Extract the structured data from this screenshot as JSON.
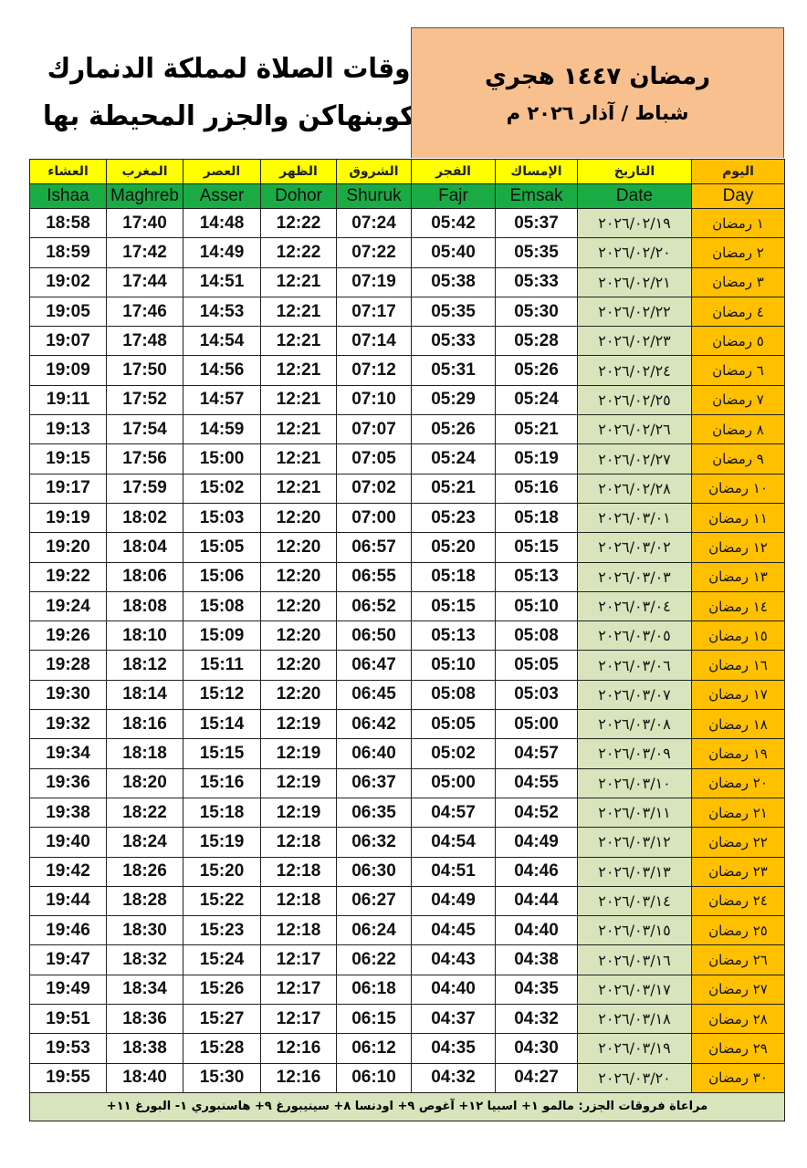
{
  "title": {
    "line1": "أوقات الصلاة لمملكة الدنمارك",
    "line2": "كوبنهاكن والجزر المحيطة بها"
  },
  "hijri": {
    "line1": "رمضان ١٤٤٧ هجري",
    "line2": "شباط / آذار ٢٠٢٦ م"
  },
  "colors": {
    "header_yellow": "#ffff00",
    "header_green": "#1aab45",
    "day_orange": "#ffc000",
    "date_green": "#d8e4bc",
    "hijri_box": "#f8c08e"
  },
  "columns": [
    {
      "key": "ishaa",
      "ar": "العشاء",
      "en": "Ishaa"
    },
    {
      "key": "maghreb",
      "ar": "المغرب",
      "en": "Maghreb"
    },
    {
      "key": "asser",
      "ar": "العصر",
      "en": "Asser"
    },
    {
      "key": "dohor",
      "ar": "الظهر",
      "en": "Dohor"
    },
    {
      "key": "shuruk",
      "ar": "الشروق",
      "en": "Shuruk"
    },
    {
      "key": "fajr",
      "ar": "الفجر",
      "en": "Fajr"
    },
    {
      "key": "emsak",
      "ar": "الإمساك",
      "en": "Emsak"
    },
    {
      "key": "date",
      "ar": "التاريخ",
      "en": "Date"
    },
    {
      "key": "day",
      "ar": "اليوم",
      "en": "Day"
    }
  ],
  "rows": [
    {
      "ishaa": "18:58",
      "maghreb": "17:40",
      "asser": "14:48",
      "dohor": "12:22",
      "shuruk": "07:24",
      "fajr": "05:42",
      "emsak": "05:37",
      "date": "٢٠٢٦/٠٢/١٩",
      "day": "١ رمضان"
    },
    {
      "ishaa": "18:59",
      "maghreb": "17:42",
      "asser": "14:49",
      "dohor": "12:22",
      "shuruk": "07:22",
      "fajr": "05:40",
      "emsak": "05:35",
      "date": "٢٠٢٦/٠٢/٢٠",
      "day": "٢ رمضان"
    },
    {
      "ishaa": "19:02",
      "maghreb": "17:44",
      "asser": "14:51",
      "dohor": "12:21",
      "shuruk": "07:19",
      "fajr": "05:38",
      "emsak": "05:33",
      "date": "٢٠٢٦/٠٢/٢١",
      "day": "٣ رمضان"
    },
    {
      "ishaa": "19:05",
      "maghreb": "17:46",
      "asser": "14:53",
      "dohor": "12:21",
      "shuruk": "07:17",
      "fajr": "05:35",
      "emsak": "05:30",
      "date": "٢٠٢٦/٠٢/٢٢",
      "day": "٤ رمضان"
    },
    {
      "ishaa": "19:07",
      "maghreb": "17:48",
      "asser": "14:54",
      "dohor": "12:21",
      "shuruk": "07:14",
      "fajr": "05:33",
      "emsak": "05:28",
      "date": "٢٠٢٦/٠٢/٢٣",
      "day": "٥ رمضان"
    },
    {
      "ishaa": "19:09",
      "maghreb": "17:50",
      "asser": "14:56",
      "dohor": "12:21",
      "shuruk": "07:12",
      "fajr": "05:31",
      "emsak": "05:26",
      "date": "٢٠٢٦/٠٢/٢٤",
      "day": "٦ رمضان"
    },
    {
      "ishaa": "19:11",
      "maghreb": "17:52",
      "asser": "14:57",
      "dohor": "12:21",
      "shuruk": "07:10",
      "fajr": "05:29",
      "emsak": "05:24",
      "date": "٢٠٢٦/٠٢/٢٥",
      "day": "٧ رمضان"
    },
    {
      "ishaa": "19:13",
      "maghreb": "17:54",
      "asser": "14:59",
      "dohor": "12:21",
      "shuruk": "07:07",
      "fajr": "05:26",
      "emsak": "05:21",
      "date": "٢٠٢٦/٠٢/٢٦",
      "day": "٨ رمضان"
    },
    {
      "ishaa": "19:15",
      "maghreb": "17:56",
      "asser": "15:00",
      "dohor": "12:21",
      "shuruk": "07:05",
      "fajr": "05:24",
      "emsak": "05:19",
      "date": "٢٠٢٦/٠٢/٢٧",
      "day": "٩ رمضان"
    },
    {
      "ishaa": "19:17",
      "maghreb": "17:59",
      "asser": "15:02",
      "dohor": "12:21",
      "shuruk": "07:02",
      "fajr": "05:21",
      "emsak": "05:16",
      "date": "٢٠٢٦/٠٢/٢٨",
      "day": "١٠ رمضان"
    },
    {
      "ishaa": "19:19",
      "maghreb": "18:02",
      "asser": "15:03",
      "dohor": "12:20",
      "shuruk": "07:00",
      "fajr": "05:23",
      "emsak": "05:18",
      "date": "٢٠٢٦/٠٣/٠١",
      "day": "١١ رمضان"
    },
    {
      "ishaa": "19:20",
      "maghreb": "18:04",
      "asser": "15:05",
      "dohor": "12:20",
      "shuruk": "06:57",
      "fajr": "05:20",
      "emsak": "05:15",
      "date": "٢٠٢٦/٠٣/٠٢",
      "day": "١٢ رمضان"
    },
    {
      "ishaa": "19:22",
      "maghreb": "18:06",
      "asser": "15:06",
      "dohor": "12:20",
      "shuruk": "06:55",
      "fajr": "05:18",
      "emsak": "05:13",
      "date": "٢٠٢٦/٠٣/٠٣",
      "day": "١٣ رمضان"
    },
    {
      "ishaa": "19:24",
      "maghreb": "18:08",
      "asser": "15:08",
      "dohor": "12:20",
      "shuruk": "06:52",
      "fajr": "05:15",
      "emsak": "05:10",
      "date": "٢٠٢٦/٠٣/٠٤",
      "day": "١٤ رمضان"
    },
    {
      "ishaa": "19:26",
      "maghreb": "18:10",
      "asser": "15:09",
      "dohor": "12:20",
      "shuruk": "06:50",
      "fajr": "05:13",
      "emsak": "05:08",
      "date": "٢٠٢٦/٠٣/٠٥",
      "day": "١٥ رمضان"
    },
    {
      "ishaa": "19:28",
      "maghreb": "18:12",
      "asser": "15:11",
      "dohor": "12:20",
      "shuruk": "06:47",
      "fajr": "05:10",
      "emsak": "05:05",
      "date": "٢٠٢٦/٠٣/٠٦",
      "day": "١٦ رمضان"
    },
    {
      "ishaa": "19:30",
      "maghreb": "18:14",
      "asser": "15:12",
      "dohor": "12:20",
      "shuruk": "06:45",
      "fajr": "05:08",
      "emsak": "05:03",
      "date": "٢٠٢٦/٠٣/٠٧",
      "day": "١٧ رمضان"
    },
    {
      "ishaa": "19:32",
      "maghreb": "18:16",
      "asser": "15:14",
      "dohor": "12:19",
      "shuruk": "06:42",
      "fajr": "05:05",
      "emsak": "05:00",
      "date": "٢٠٢٦/٠٣/٠٨",
      "day": "١٨ رمضان"
    },
    {
      "ishaa": "19:34",
      "maghreb": "18:18",
      "asser": "15:15",
      "dohor": "12:19",
      "shuruk": "06:40",
      "fajr": "05:02",
      "emsak": "04:57",
      "date": "٢٠٢٦/٠٣/٠٩",
      "day": "١٩ رمضان"
    },
    {
      "ishaa": "19:36",
      "maghreb": "18:20",
      "asser": "15:16",
      "dohor": "12:19",
      "shuruk": "06:37",
      "fajr": "05:00",
      "emsak": "04:55",
      "date": "٢٠٢٦/٠٣/١٠",
      "day": "٢٠ رمضان"
    },
    {
      "ishaa": "19:38",
      "maghreb": "18:22",
      "asser": "15:18",
      "dohor": "12:19",
      "shuruk": "06:35",
      "fajr": "04:57",
      "emsak": "04:52",
      "date": "٢٠٢٦/٠٣/١١",
      "day": "٢١ رمضان"
    },
    {
      "ishaa": "19:40",
      "maghreb": "18:24",
      "asser": "15:19",
      "dohor": "12:18",
      "shuruk": "06:32",
      "fajr": "04:54",
      "emsak": "04:49",
      "date": "٢٠٢٦/٠٣/١٢",
      "day": "٢٢ رمضان"
    },
    {
      "ishaa": "19:42",
      "maghreb": "18:26",
      "asser": "15:20",
      "dohor": "12:18",
      "shuruk": "06:30",
      "fajr": "04:51",
      "emsak": "04:46",
      "date": "٢٠٢٦/٠٣/١٣",
      "day": "٢٣ رمضان"
    },
    {
      "ishaa": "19:44",
      "maghreb": "18:28",
      "asser": "15:22",
      "dohor": "12:18",
      "shuruk": "06:27",
      "fajr": "04:49",
      "emsak": "04:44",
      "date": "٢٠٢٦/٠٣/١٤",
      "day": "٢٤ رمضان"
    },
    {
      "ishaa": "19:46",
      "maghreb": "18:30",
      "asser": "15:23",
      "dohor": "12:18",
      "shuruk": "06:24",
      "fajr": "04:45",
      "emsak": "04:40",
      "date": "٢٠٢٦/٠٣/١٥",
      "day": "٢٥ رمضان"
    },
    {
      "ishaa": "19:47",
      "maghreb": "18:32",
      "asser": "15:24",
      "dohor": "12:17",
      "shuruk": "06:22",
      "fajr": "04:43",
      "emsak": "04:38",
      "date": "٢٠٢٦/٠٣/١٦",
      "day": "٢٦ رمضان"
    },
    {
      "ishaa": "19:49",
      "maghreb": "18:34",
      "asser": "15:26",
      "dohor": "12:17",
      "shuruk": "06:18",
      "fajr": "04:40",
      "emsak": "04:35",
      "date": "٢٠٢٦/٠٣/١٧",
      "day": "٢٧ رمضان"
    },
    {
      "ishaa": "19:51",
      "maghreb": "18:36",
      "asser": "15:27",
      "dohor": "12:17",
      "shuruk": "06:15",
      "fajr": "04:37",
      "emsak": "04:32",
      "date": "٢٠٢٦/٠٣/١٨",
      "day": "٢٨ رمضان"
    },
    {
      "ishaa": "19:53",
      "maghreb": "18:38",
      "asser": "15:28",
      "dohor": "12:16",
      "shuruk": "06:12",
      "fajr": "04:35",
      "emsak": "04:30",
      "date": "٢٠٢٦/٠٣/١٩",
      "day": "٢٩ رمضان"
    },
    {
      "ishaa": "19:55",
      "maghreb": "18:40",
      "asser": "15:30",
      "dohor": "12:16",
      "shuruk": "06:10",
      "fajr": "04:32",
      "emsak": "04:27",
      "date": "٢٠٢٦/٠٣/٢٠",
      "day": "٣٠ رمضان"
    }
  ],
  "footer": "مراعاة فروقات الجزر: مالمو ١+ اسبيا ١٢+ آغوص ٩+ اودنسا ٨+ سينيبورغ ٩+ هاسنبوري ١- البورغ ١١+"
}
